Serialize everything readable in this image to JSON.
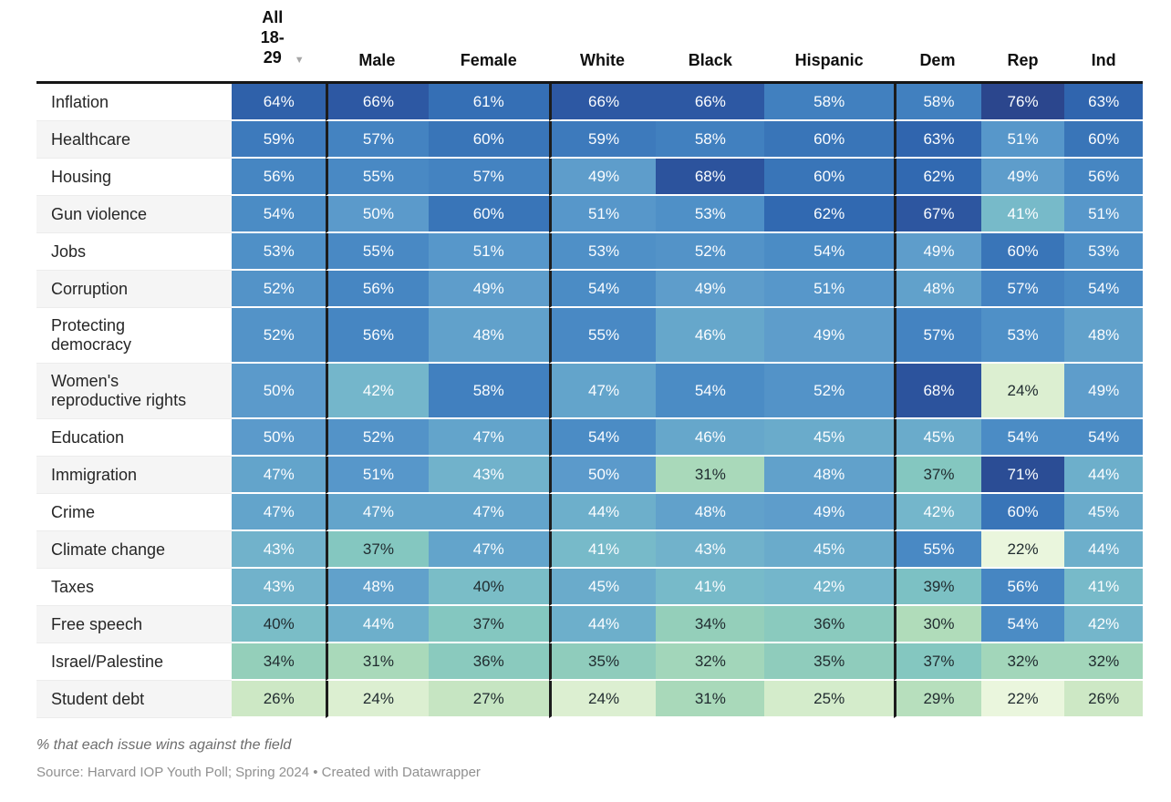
{
  "chart_data": {
    "type": "heatmap",
    "title": "",
    "unit": "%",
    "columns": [
      "All 18-29",
      "Male",
      "Female",
      "White",
      "Black",
      "Hispanic",
      "Dem",
      "Rep",
      "Ind"
    ],
    "sorted_column": "All 18-29",
    "sort_icon": "▼",
    "rows": [
      "Inflation",
      "Healthcare",
      "Housing",
      "Gun violence",
      "Jobs",
      "Corruption",
      "Protecting democracy",
      "Women's reproductive rights",
      "Education",
      "Immigration",
      "Crime",
      "Climate change",
      "Taxes",
      "Free speech",
      "Israel/Palestine",
      "Student debt"
    ],
    "values": [
      [
        64,
        66,
        61,
        66,
        66,
        58,
        58,
        76,
        63
      ],
      [
        59,
        57,
        60,
        59,
        58,
        60,
        63,
        51,
        60
      ],
      [
        56,
        55,
        57,
        49,
        68,
        60,
        62,
        49,
        56
      ],
      [
        54,
        50,
        60,
        51,
        53,
        62,
        67,
        41,
        51
      ],
      [
        53,
        55,
        51,
        53,
        52,
        54,
        49,
        60,
        53
      ],
      [
        52,
        56,
        49,
        54,
        49,
        51,
        48,
        57,
        54
      ],
      [
        52,
        56,
        48,
        55,
        46,
        49,
        57,
        53,
        48
      ],
      [
        50,
        42,
        58,
        47,
        54,
        52,
        68,
        24,
        49
      ],
      [
        50,
        52,
        47,
        54,
        46,
        45,
        45,
        54,
        54
      ],
      [
        47,
        51,
        43,
        50,
        31,
        48,
        37,
        71,
        44
      ],
      [
        47,
        47,
        47,
        44,
        48,
        49,
        42,
        60,
        45
      ],
      [
        43,
        37,
        47,
        41,
        43,
        45,
        55,
        22,
        44
      ],
      [
        43,
        48,
        40,
        45,
        41,
        42,
        39,
        56,
        41
      ],
      [
        40,
        44,
        37,
        44,
        34,
        36,
        30,
        54,
        42
      ],
      [
        34,
        31,
        36,
        35,
        32,
        35,
        37,
        32,
        32
      ],
      [
        26,
        24,
        27,
        24,
        31,
        25,
        29,
        22,
        26
      ]
    ],
    "column_groups": [
      [
        "All 18-29"
      ],
      [
        "Male",
        "Female"
      ],
      [
        "White",
        "Black",
        "Hispanic"
      ],
      [
        "Dem",
        "Rep",
        "Ind"
      ]
    ],
    "legend_position": "none",
    "grid": false,
    "value_range": [
      22,
      76
    ],
    "color_scale": {
      "stops": [
        [
          22,
          "#eaf6dd"
        ],
        [
          26,
          "#cde8c5"
        ],
        [
          30,
          "#b0dcba"
        ],
        [
          34,
          "#94cfba"
        ],
        [
          38,
          "#7fc4c2"
        ],
        [
          42,
          "#74b6cb"
        ],
        [
          46,
          "#66a7cb"
        ],
        [
          50,
          "#5b9acb"
        ],
        [
          54,
          "#4b8cc5"
        ],
        [
          58,
          "#4180bf"
        ],
        [
          62,
          "#3169b1"
        ],
        [
          66,
          "#2d58a3"
        ],
        [
          70,
          "#2b4e96"
        ],
        [
          76,
          "#2b468d"
        ]
      ],
      "dark_text_max": 40,
      "dark_text_color": "#212c30",
      "light_text_color": "#fbfdff"
    }
  },
  "footer": {
    "note": "% that each issue wins against the field",
    "source": "Source: Harvard IOP Youth Poll; Spring 2024 • Created with Datawrapper"
  }
}
